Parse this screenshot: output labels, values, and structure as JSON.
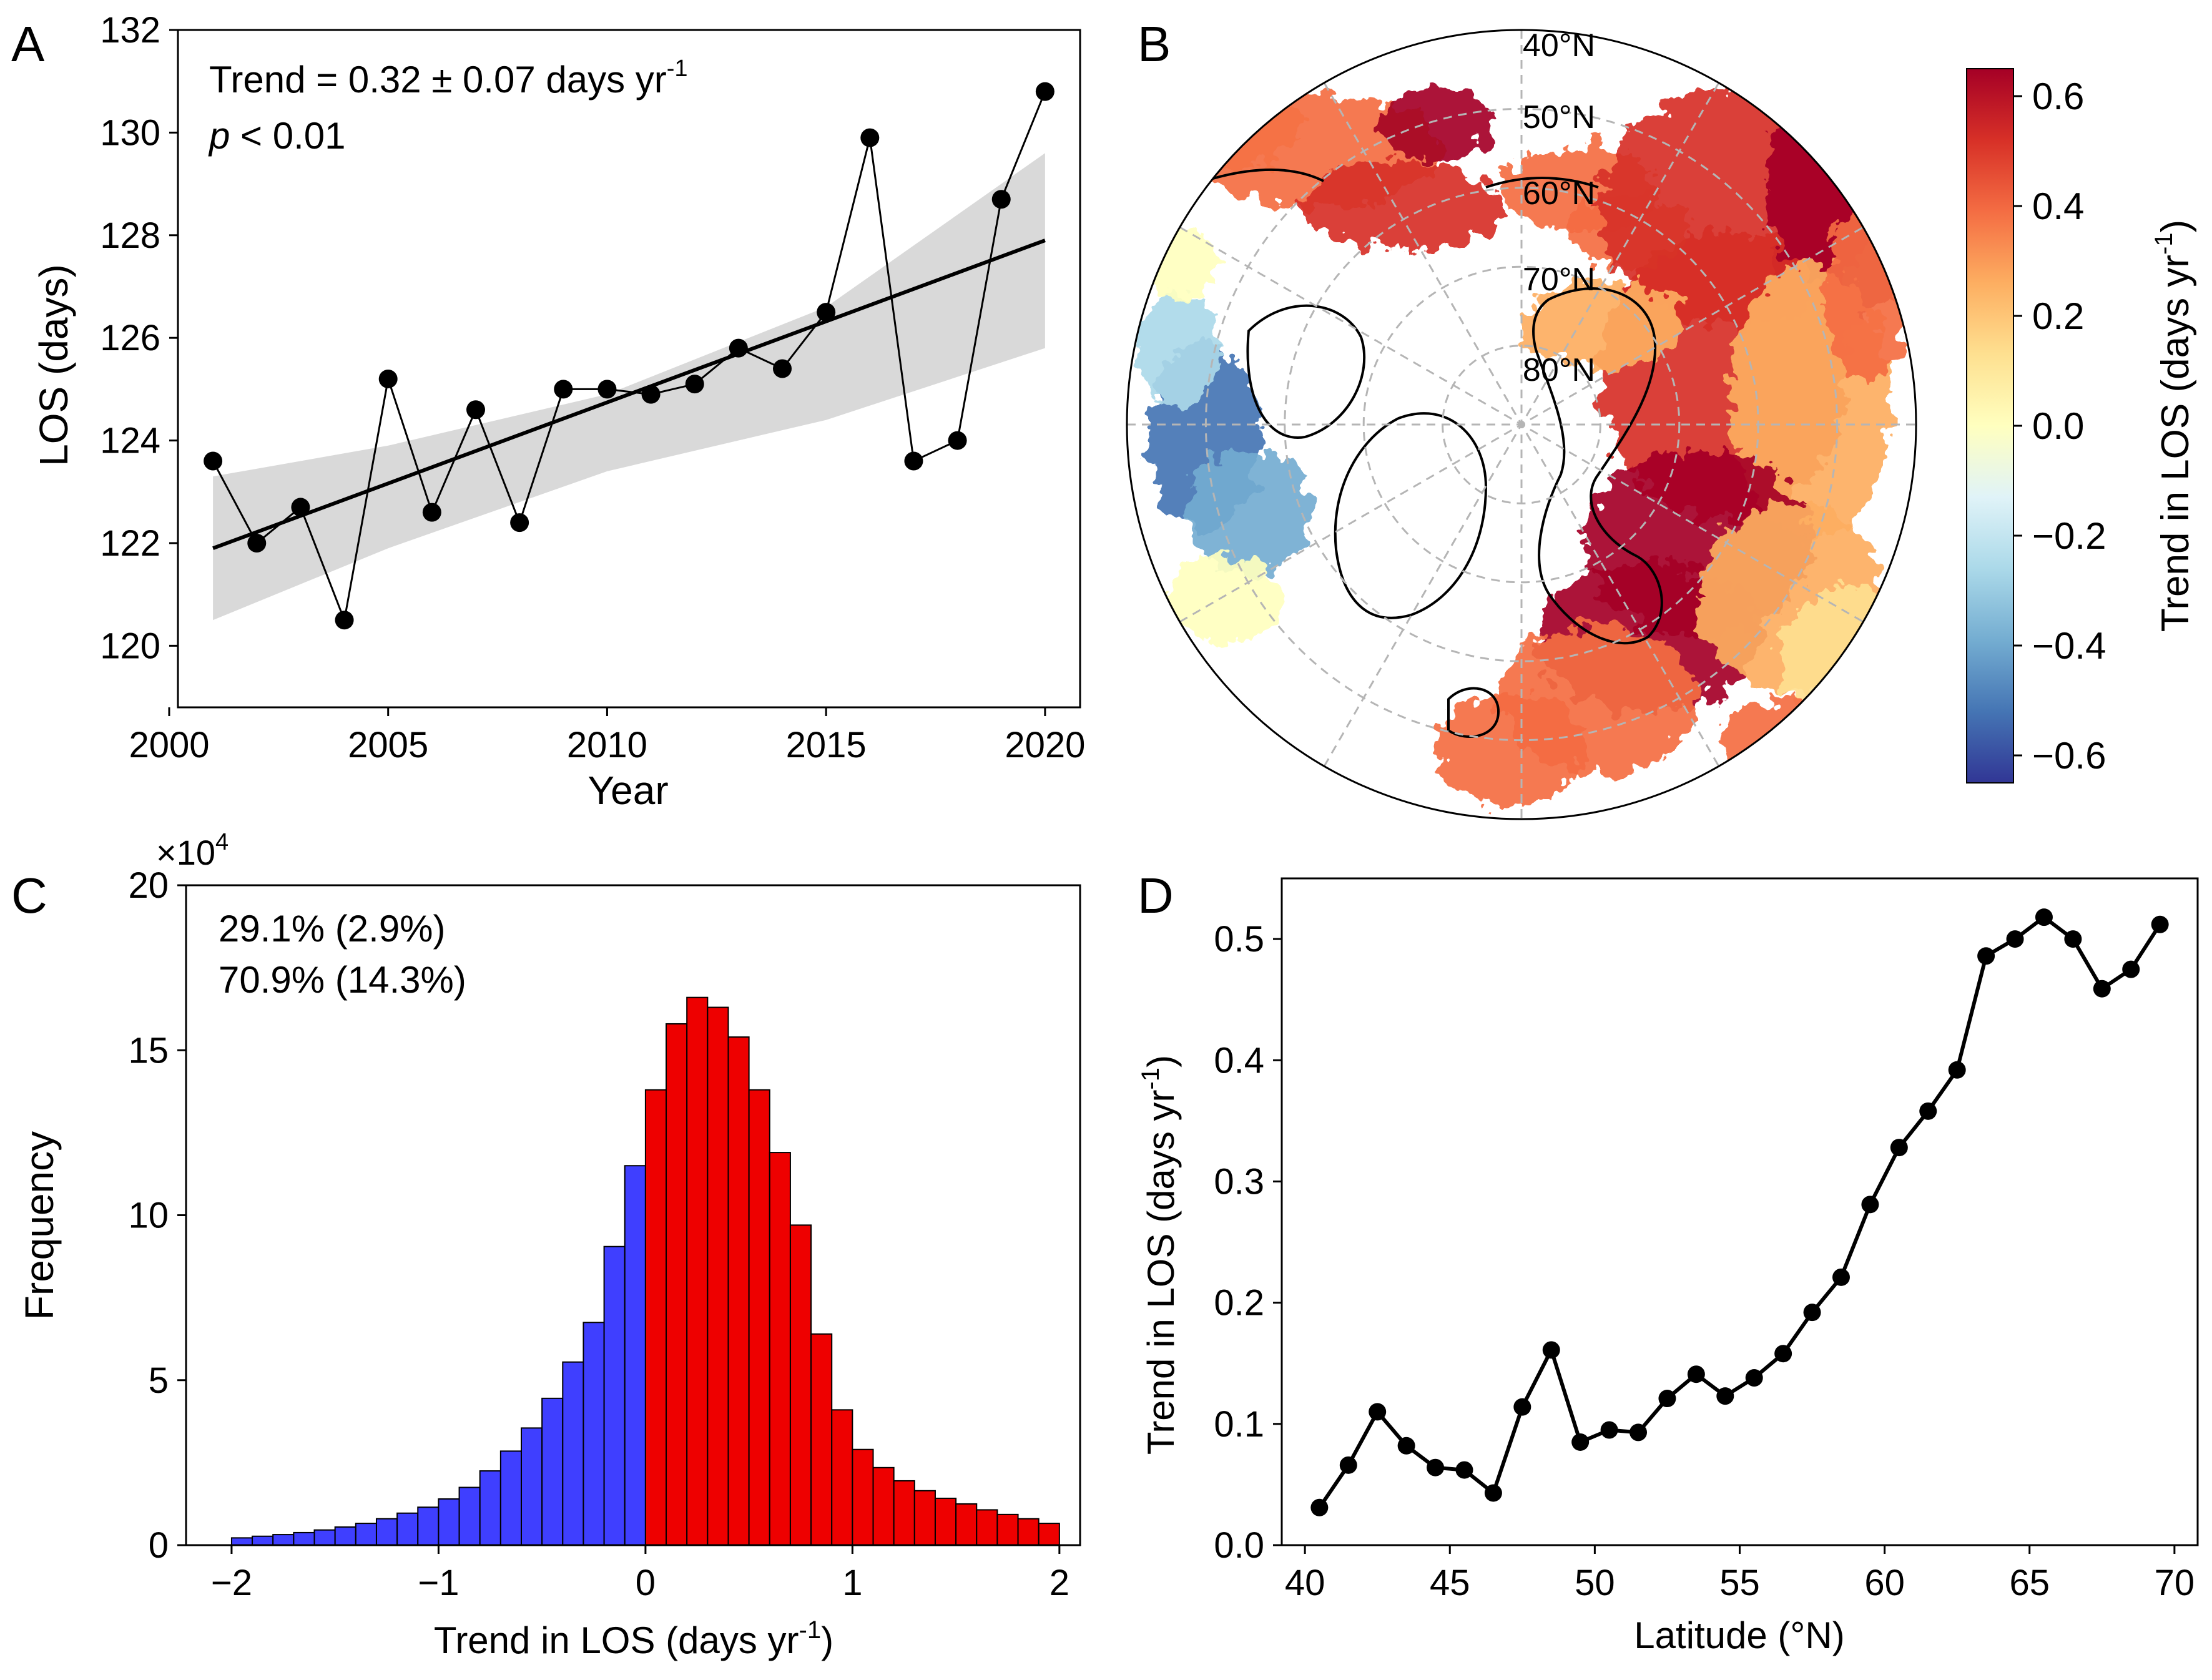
{
  "panels": {
    "a": {
      "letter": "A"
    },
    "b": {
      "letter": "B"
    },
    "c": {
      "letter": "C"
    },
    "d": {
      "letter": "D"
    }
  },
  "colors": {
    "negative": "#3f3fff",
    "positive": "#ee0000",
    "band": "#d9d9d9",
    "line": "#000000",
    "grid": "#b5b5b5",
    "colormap": [
      "#313695",
      "#4575b4",
      "#74add1",
      "#abd9e9",
      "#e0f3f8",
      "#ffffbf",
      "#fee090",
      "#fdae61",
      "#f46d43",
      "#d73027",
      "#a50026"
    ]
  },
  "chart_data": [
    {
      "panel": "A",
      "type": "line",
      "xlabel": "Year",
      "ylabel": "LOS (days)",
      "xlim": [
        2000.2,
        2020.8
      ],
      "ylim": [
        118.8,
        132
      ],
      "xticks": [
        2000,
        2005,
        2010,
        2015,
        2020
      ],
      "yticks": [
        120,
        122,
        124,
        126,
        128,
        130,
        132
      ],
      "annotation": {
        "trend_text": "Trend = 0.32 ± 0.07 days yr",
        "trend_sup": "-1",
        "p_label": "p",
        "p_value": " < 0.01"
      },
      "series": [
        {
          "x": [
            2001,
            2002,
            2003,
            2004,
            2005,
            2006,
            2007,
            2008,
            2009,
            2010,
            2011,
            2012,
            2013,
            2014,
            2015,
            2016,
            2017,
            2018,
            2019,
            2020
          ],
          "values": [
            123.6,
            122.0,
            122.7,
            120.5,
            125.2,
            122.6,
            124.6,
            122.4,
            125.0,
            125.0,
            124.9,
            125.1,
            125.8,
            125.4,
            126.5,
            129.9,
            123.6,
            124.0,
            128.7,
            130.8
          ]
        }
      ],
      "fit": {
        "x": [
          2001,
          2020
        ],
        "y": [
          121.9,
          127.9
        ]
      },
      "confidence_band": {
        "x": [
          2001,
          2005,
          2010,
          2015,
          2020
        ],
        "lower": [
          120.5,
          121.9,
          123.4,
          124.4,
          125.8
        ],
        "upper": [
          123.3,
          123.9,
          124.9,
          126.6,
          129.6
        ]
      }
    },
    {
      "panel": "B",
      "type": "heatmap",
      "projection": "north polar stereographic",
      "lat_labels": [
        "40°N",
        "50°N",
        "60°N",
        "70°N",
        "80°N"
      ],
      "colorbar": {
        "label": "Trend in LOS (days yr",
        "label_sup": "-1",
        "label_end": ")",
        "range": [
          -0.65,
          0.65
        ],
        "ticks": [
          -0.6,
          -0.4,
          -0.2,
          0.0,
          0.2,
          0.4,
          0.6
        ],
        "tick_labels": [
          "−0.6",
          "−0.4",
          "−0.2",
          "0.0",
          "0.2",
          "0.4",
          "0.6"
        ]
      }
    },
    {
      "panel": "C",
      "type": "bar",
      "xlabel": "Trend in LOS (days yr",
      "xlabel_sup": "-1",
      "xlabel_end": ")",
      "ylabel": "Frequency",
      "xlim": [
        -2.22,
        2.1
      ],
      "ylim": [
        0,
        20
      ],
      "xticks": [
        -2,
        -1,
        0,
        1,
        2
      ],
      "xtick_labels": [
        "−2",
        "−1",
        "0",
        "1",
        "2"
      ],
      "yticks": [
        0,
        5,
        10,
        15,
        20
      ],
      "y_multiplier_base": "×10",
      "y_multiplier_exp": "4",
      "bin_width": 0.1,
      "bin_left_edges": [
        -2.0,
        -1.9,
        -1.8,
        -1.7,
        -1.6,
        -1.5,
        -1.4,
        -1.3,
        -1.2,
        -1.1,
        -1.0,
        -0.9,
        -0.8,
        -0.7,
        -0.6,
        -0.5,
        -0.4,
        -0.3,
        -0.2,
        -0.1,
        0.0,
        0.1,
        0.2,
        0.3,
        0.4,
        0.5,
        0.6,
        0.7,
        0.8,
        0.9,
        1.0,
        1.1,
        1.2,
        1.3,
        1.4,
        1.5,
        1.6,
        1.7,
        1.8,
        1.9
      ],
      "values": [
        0.22,
        0.27,
        0.32,
        0.38,
        0.46,
        0.55,
        0.66,
        0.8,
        0.97,
        1.15,
        1.4,
        1.75,
        2.25,
        2.85,
        3.55,
        4.45,
        5.55,
        6.75,
        9.05,
        11.5,
        13.8,
        15.8,
        16.6,
        16.3,
        15.4,
        13.8,
        11.9,
        9.7,
        6.4,
        4.1,
        2.9,
        2.35,
        1.95,
        1.65,
        1.42,
        1.25,
        1.07,
        0.93,
        0.8,
        0.66
      ],
      "annotations": [
        {
          "text": "29.1% (2.9%)",
          "color": "#2525e6"
        },
        {
          "text": "70.9% (14.3%)",
          "color": "#e61515"
        }
      ]
    },
    {
      "panel": "D",
      "type": "line",
      "xlabel": "Latitude (°N)",
      "ylabel": "Trend in LOS (days yr",
      "ylabel_sup": "-1",
      "ylabel_end": ")",
      "xlim": [
        39.2,
        70.8
      ],
      "ylim": [
        0.0,
        0.55
      ],
      "xticks": [
        40,
        45,
        50,
        55,
        60,
        65,
        70
      ],
      "yticks": [
        0.0,
        0.1,
        0.2,
        0.3,
        0.4,
        0.5
      ],
      "ytick_labels": [
        "0.0",
        "0.1",
        "0.2",
        "0.3",
        "0.4",
        "0.5"
      ],
      "series": [
        {
          "x": [
            40.5,
            41.5,
            42.5,
            43.5,
            44.5,
            45.5,
            46.5,
            47.5,
            48.5,
            49.5,
            50.5,
            51.5,
            52.5,
            53.5,
            54.5,
            55.5,
            56.5,
            57.5,
            58.5,
            59.5,
            60.5,
            61.5,
            62.5,
            63.5,
            64.5,
            65.5,
            66.5,
            67.5,
            68.5,
            69.5
          ],
          "values": [
            0.031,
            0.066,
            0.11,
            0.082,
            0.064,
            0.062,
            0.043,
            0.114,
            0.161,
            0.085,
            0.095,
            0.093,
            0.121,
            0.141,
            0.123,
            0.138,
            0.158,
            0.192,
            0.221,
            0.281,
            0.328,
            0.358,
            0.392,
            0.486,
            0.5,
            0.518,
            0.5,
            0.459,
            0.475,
            0.512
          ]
        }
      ]
    }
  ]
}
